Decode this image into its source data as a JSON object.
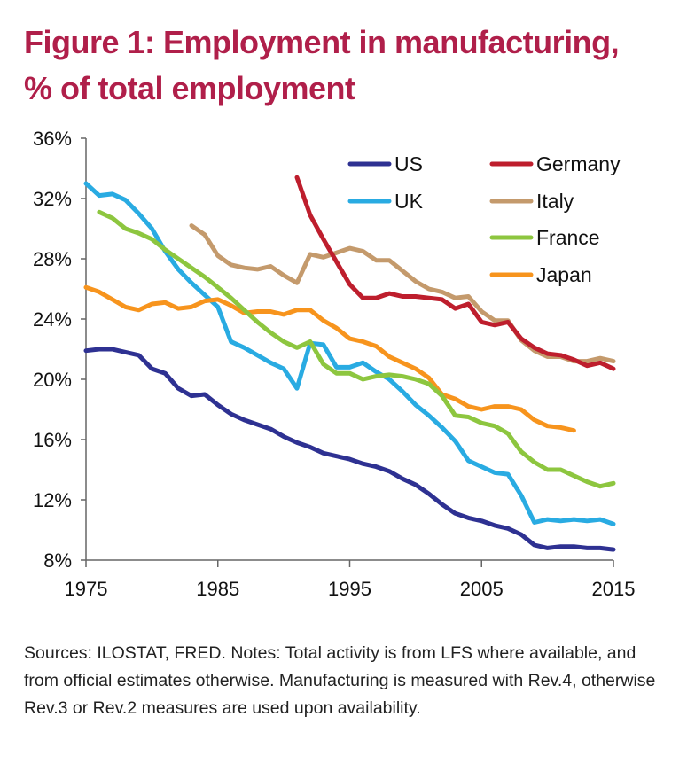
{
  "title": {
    "line1": "Figure 1: Employment in manufacturing,",
    "line2": "% of total employment"
  },
  "notes": "Sources: ILOSTAT, FRED. Notes: Total activity is from LFS where available, and from official estimates otherwise. Manufacturing is measured with Rev.4, otherwise Rev.3 or Rev.2 measures are used upon availability.",
  "chart_data": {
    "type": "line",
    "title": "Figure 1: Employment in manufacturing, % of total employment",
    "xlabel": "",
    "ylabel": "",
    "xlim": [
      1975,
      2015
    ],
    "ylim": [
      8,
      36
    ],
    "x_ticks": [
      1975,
      1985,
      1995,
      2005,
      2015
    ],
    "x_tick_labels": [
      "1975",
      "1985",
      "1995",
      "2005",
      "2015"
    ],
    "y_ticks": [
      8,
      12,
      16,
      20,
      24,
      28,
      32,
      36
    ],
    "y_tick_labels": [
      "8%",
      "12%",
      "16%",
      "20%",
      "24%",
      "28%",
      "32%",
      "36%"
    ],
    "grid": false,
    "legend_position": "top-right",
    "legend_columns": [
      [
        "US",
        "UK"
      ],
      [
        "Germany",
        "Italy",
        "France",
        "Japan"
      ]
    ],
    "series": [
      {
        "name": "US",
        "color": "#2e3192",
        "start_year": 1975,
        "values": [
          21.9,
          22.0,
          22.0,
          21.8,
          21.6,
          20.7,
          20.4,
          19.4,
          18.9,
          19.0,
          18.3,
          17.7,
          17.3,
          17.0,
          16.7,
          16.2,
          15.8,
          15.5,
          15.1,
          14.9,
          14.7,
          14.4,
          14.2,
          13.9,
          13.4,
          13.0,
          12.4,
          11.7,
          11.1,
          10.8,
          10.6,
          10.3,
          10.1,
          9.7,
          9.0,
          8.8,
          8.9,
          8.9,
          8.8,
          8.8,
          8.7
        ]
      },
      {
        "name": "UK",
        "color": "#29abe2",
        "start_year": 1975,
        "values": [
          33.0,
          32.2,
          32.3,
          31.9,
          31.0,
          30.0,
          28.5,
          27.3,
          26.4,
          25.6,
          24.8,
          22.5,
          22.1,
          21.6,
          21.1,
          20.7,
          19.4,
          22.4,
          22.3,
          20.8,
          20.8,
          21.1,
          20.5,
          20.0,
          19.2,
          18.3,
          17.6,
          16.8,
          15.9,
          14.6,
          14.2,
          13.8,
          13.7,
          12.3,
          10.5,
          10.7,
          10.6,
          10.7,
          10.6,
          10.7,
          10.4
        ]
      },
      {
        "name": "Germany",
        "color": "#be1e2d",
        "start_year": 1991,
        "values": [
          33.4,
          30.9,
          29.3,
          27.8,
          26.3,
          25.4,
          25.4,
          25.7,
          25.5,
          25.5,
          25.4,
          25.3,
          24.7,
          25.0,
          23.8,
          23.6,
          23.8,
          22.7,
          22.1,
          21.7,
          21.6,
          21.3,
          20.9,
          21.1,
          20.7
        ]
      },
      {
        "name": "Italy",
        "color": "#c49a6c",
        "start_year": 1983,
        "values": [
          30.2,
          29.6,
          28.2,
          27.6,
          27.4,
          27.3,
          27.5,
          26.9,
          26.4,
          28.3,
          28.1,
          28.4,
          28.7,
          28.5,
          27.9,
          27.9,
          27.2,
          26.5,
          26.0,
          25.8,
          25.4,
          25.5,
          24.5,
          23.9,
          23.9,
          22.6,
          21.9,
          21.5,
          21.5,
          21.2,
          21.2,
          21.4,
          21.2
        ]
      },
      {
        "name": "France",
        "color": "#8dc63f",
        "start_year": 1976,
        "values": [
          31.1,
          30.7,
          30.0,
          29.7,
          29.3,
          28.6,
          28.0,
          27.4,
          26.8,
          26.1,
          25.4,
          24.6,
          23.8,
          23.1,
          22.5,
          22.1,
          22.5,
          21.0,
          20.4,
          20.4,
          20.0,
          20.2,
          20.3,
          20.2,
          20.0,
          19.7,
          18.9,
          17.6,
          17.5,
          17.1,
          16.9,
          16.4,
          15.2,
          14.5,
          14.0,
          14.0,
          13.6,
          13.2,
          12.9,
          13.1
        ]
      },
      {
        "name": "Japan",
        "color": "#f7941d",
        "start_year": 1975,
        "values": [
          26.1,
          25.8,
          25.3,
          24.8,
          24.6,
          25.0,
          25.1,
          24.7,
          24.8,
          25.2,
          25.3,
          24.9,
          24.4,
          24.5,
          24.5,
          24.3,
          24.6,
          24.6,
          23.9,
          23.4,
          22.7,
          22.5,
          22.2,
          21.5,
          21.1,
          20.7,
          20.1,
          19.0,
          18.7,
          18.2,
          18.0,
          18.2,
          18.2,
          18.0,
          17.3,
          16.9,
          16.8,
          16.6
        ]
      }
    ]
  }
}
